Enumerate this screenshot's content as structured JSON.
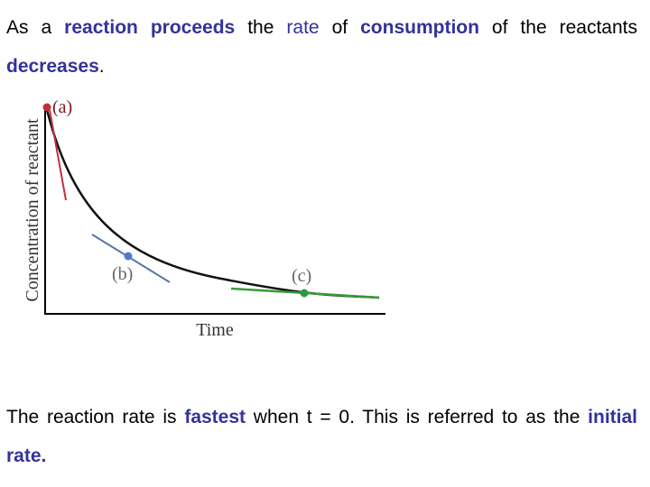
{
  "paragraphs": [
    {
      "segments": [
        "As a ",
        "reaction proceeds",
        " the ",
        "rate",
        " of ",
        "consumption",
        " of the reactants ",
        "decreases",
        "."
      ]
    },
    {
      "segments": [
        "The reaction rate is ",
        "fastest",
        " when t = 0. This is referred to as the ",
        "initial rate."
      ]
    }
  ],
  "figure": {
    "y_axis_label": "Concentration of reactant",
    "x_axis_label": "Time",
    "point_labels": [
      "(a)",
      "(b)",
      "(c)"
    ]
  }
}
